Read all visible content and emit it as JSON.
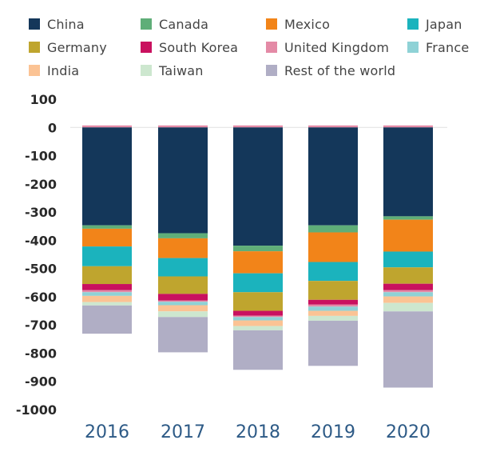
{
  "chart_data": {
    "type": "bar",
    "stacked": true,
    "title": "",
    "xlabel": "",
    "ylabel": "",
    "ylim": [
      -1000,
      100
    ],
    "yticks": [
      100,
      0,
      -100,
      -200,
      -300,
      -400,
      -500,
      -600,
      -700,
      -800,
      -900,
      -1000
    ],
    "ytick_labels": [
      "100",
      "0",
      "-100",
      "-200",
      "-300",
      "-400",
      "-500",
      "-600",
      "-700",
      "-800",
      "-900",
      "-1000"
    ],
    "categories": [
      "2016",
      "2017",
      "2018",
      "2019",
      "2020"
    ],
    "legend_position": "top",
    "series": [
      {
        "name": "China",
        "color": "#14375a",
        "values": [
          -347,
          -375,
          -419,
          -347,
          -315
        ]
      },
      {
        "name": "Canada",
        "color": "#5fae78",
        "values": [
          -12,
          -18,
          -20,
          -25,
          -12
        ]
      },
      {
        "name": "Mexico",
        "color": "#f28419",
        "values": [
          -63,
          -70,
          -78,
          -105,
          -113
        ]
      },
      {
        "name": "Japan",
        "color": "#1bb3bd",
        "values": [
          -70,
          -65,
          -67,
          -67,
          -56
        ]
      },
      {
        "name": "Germany",
        "color": "#bfa52e",
        "values": [
          -63,
          -62,
          -66,
          -67,
          -58
        ]
      },
      {
        "name": "South Korea",
        "color": "#c9115f",
        "values": [
          -22,
          -23,
          -17,
          -17,
          -23
        ]
      },
      {
        "name": "United Kingdom",
        "color": "#e48aa6",
        "values": [
          -7,
          -5,
          -5,
          -7,
          -7
        ]
      },
      {
        "name": "France",
        "color": "#8fd2d6",
        "values": [
          -13,
          -12,
          -12,
          -15,
          -15
        ]
      },
      {
        "name": "India",
        "color": "#fbc394",
        "values": [
          -22,
          -22,
          -20,
          -18,
          -23
        ]
      },
      {
        "name": "Taiwan",
        "color": "#cde7cf",
        "values": [
          -12,
          -20,
          -15,
          -17,
          -30
        ]
      },
      {
        "name": "Rest of the world",
        "color": "#b0aec5",
        "values": [
          -100,
          -125,
          -140,
          -160,
          -270
        ]
      }
    ]
  }
}
